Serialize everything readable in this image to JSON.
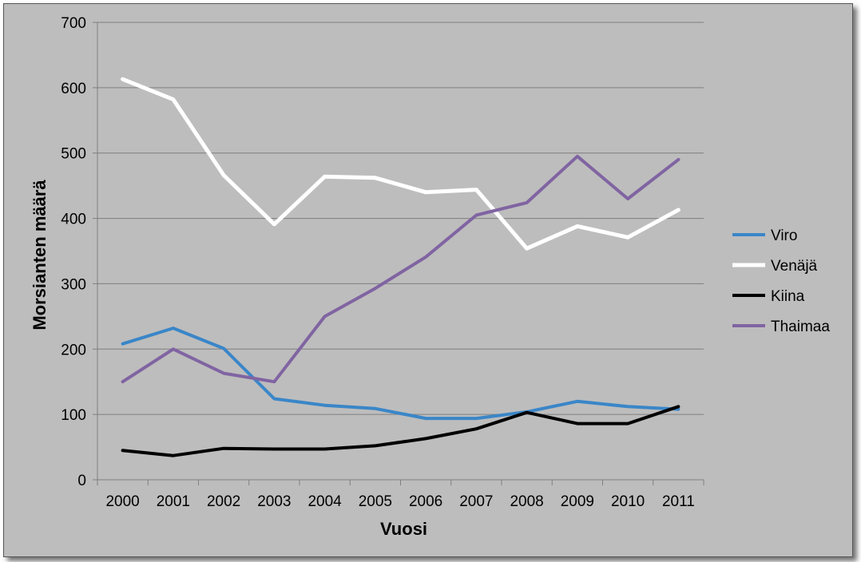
{
  "chart_data": {
    "type": "line",
    "title": "",
    "xlabel": "Vuosi",
    "ylabel": "Morsianten määrä",
    "ylim": [
      0,
      700
    ],
    "yticks": [
      0,
      100,
      200,
      300,
      400,
      500,
      600,
      700
    ],
    "grid": true,
    "legend_position": "right",
    "categories": [
      "2000",
      "2001",
      "2002",
      "2003",
      "2004",
      "2005",
      "2006",
      "2007",
      "2008",
      "2009",
      "2010",
      "2011"
    ],
    "series": [
      {
        "name": "Viro",
        "color": "#3a86c8",
        "values": [
          208,
          232,
          201,
          124,
          114,
          109,
          94,
          94,
          104,
          120,
          112,
          108
        ]
      },
      {
        "name": "Venäjä",
        "color": "#ffffff",
        "values": [
          613,
          582,
          466,
          391,
          464,
          462,
          440,
          444,
          354,
          388,
          371,
          413
        ]
      },
      {
        "name": "Kiina",
        "color": "#000000",
        "values": [
          45,
          37,
          48,
          47,
          47,
          52,
          63,
          78,
          103,
          86,
          86,
          112
        ]
      },
      {
        "name": "Thaimaa",
        "color": "#8064a2",
        "values": [
          150,
          200,
          163,
          150,
          250,
          293,
          341,
          405,
          424,
          495,
          430,
          490
        ]
      }
    ]
  }
}
